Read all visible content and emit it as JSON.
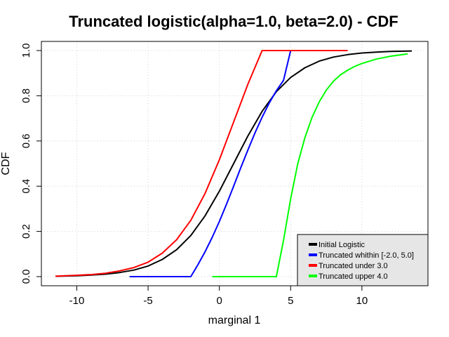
{
  "chart_data": {
    "type": "line",
    "title": "Truncated logistic(alpha=1.0, beta=2.0)  - CDF",
    "xlabel": "marginal 1",
    "ylabel": "CDF",
    "xlim": [
      -11.5,
      13.6
    ],
    "ylim": [
      0.0,
      1.0
    ],
    "xticks": [
      -10,
      -5,
      0,
      5,
      10
    ],
    "xtick_labels": [
      "-10",
      "-5",
      "0",
      "5",
      "10"
    ],
    "yticks": [
      0.0,
      0.2,
      0.4,
      0.6,
      0.8,
      1.0
    ],
    "ytick_labels": [
      "0.0",
      "0.2",
      "0.4",
      "0.6",
      "0.8",
      "1.0"
    ],
    "grid": true,
    "legend_position": "bottom-right",
    "series": [
      {
        "name": "Initial Logistic",
        "color": "#000000",
        "x": [
          -11.5,
          -10.0,
          -9.0,
          -8.0,
          -7.0,
          -6.0,
          -5.0,
          -4.0,
          -3.0,
          -2.0,
          -1.0,
          0.0,
          1.0,
          2.0,
          3.0,
          4.0,
          5.0,
          6.0,
          7.0,
          8.0,
          9.0,
          10.0,
          11.0,
          12.0,
          13.5
        ],
        "y": [
          0.0015,
          0.0041,
          0.0067,
          0.011,
          0.018,
          0.029,
          0.047,
          0.076,
          0.119,
          0.182,
          0.269,
          0.378,
          0.5,
          0.622,
          0.731,
          0.818,
          0.881,
          0.924,
          0.953,
          0.971,
          0.982,
          0.989,
          0.993,
          0.996,
          0.998
        ]
      },
      {
        "name": "Truncated whithin [-2.0, 5.0]",
        "color": "#0000ff",
        "x": [
          -6.3,
          -2.0,
          -1.5,
          -1.0,
          -0.5,
          0.0,
          0.5,
          1.0,
          1.5,
          2.0,
          2.5,
          3.0,
          3.5,
          4.0,
          4.5,
          5.0,
          9.0
        ],
        "y": [
          0.0,
          0.0,
          0.053,
          0.11,
          0.174,
          0.244,
          0.32,
          0.4,
          0.481,
          0.56,
          0.636,
          0.705,
          0.768,
          0.822,
          0.868,
          1.0,
          1.0
        ]
      },
      {
        "name": "Truncated under 3.0",
        "color": "#ff0000",
        "x": [
          -11.5,
          -10.0,
          -9.0,
          -8.0,
          -7.0,
          -6.0,
          -5.0,
          -4.0,
          -3.0,
          -2.0,
          -1.0,
          0.0,
          1.0,
          2.0,
          3.0,
          9.0
        ],
        "y": [
          0.002,
          0.006,
          0.009,
          0.015,
          0.025,
          0.04,
          0.064,
          0.104,
          0.163,
          0.249,
          0.368,
          0.517,
          0.684,
          0.851,
          1.0,
          1.0
        ]
      },
      {
        "name": "Truncated upper 4.0",
        "color": "#00ff00",
        "x": [
          -0.5,
          4.0,
          4.5,
          5.0,
          5.5,
          6.0,
          6.5,
          7.0,
          7.5,
          8.0,
          8.5,
          9.0,
          9.5,
          10.0,
          11.0,
          12.0,
          13.2
        ],
        "y": [
          0.0,
          0.0,
          0.16,
          0.344,
          0.499,
          0.615,
          0.704,
          0.772,
          0.825,
          0.864,
          0.893,
          0.913,
          0.93,
          0.943,
          0.962,
          0.975,
          0.985
        ]
      }
    ]
  }
}
